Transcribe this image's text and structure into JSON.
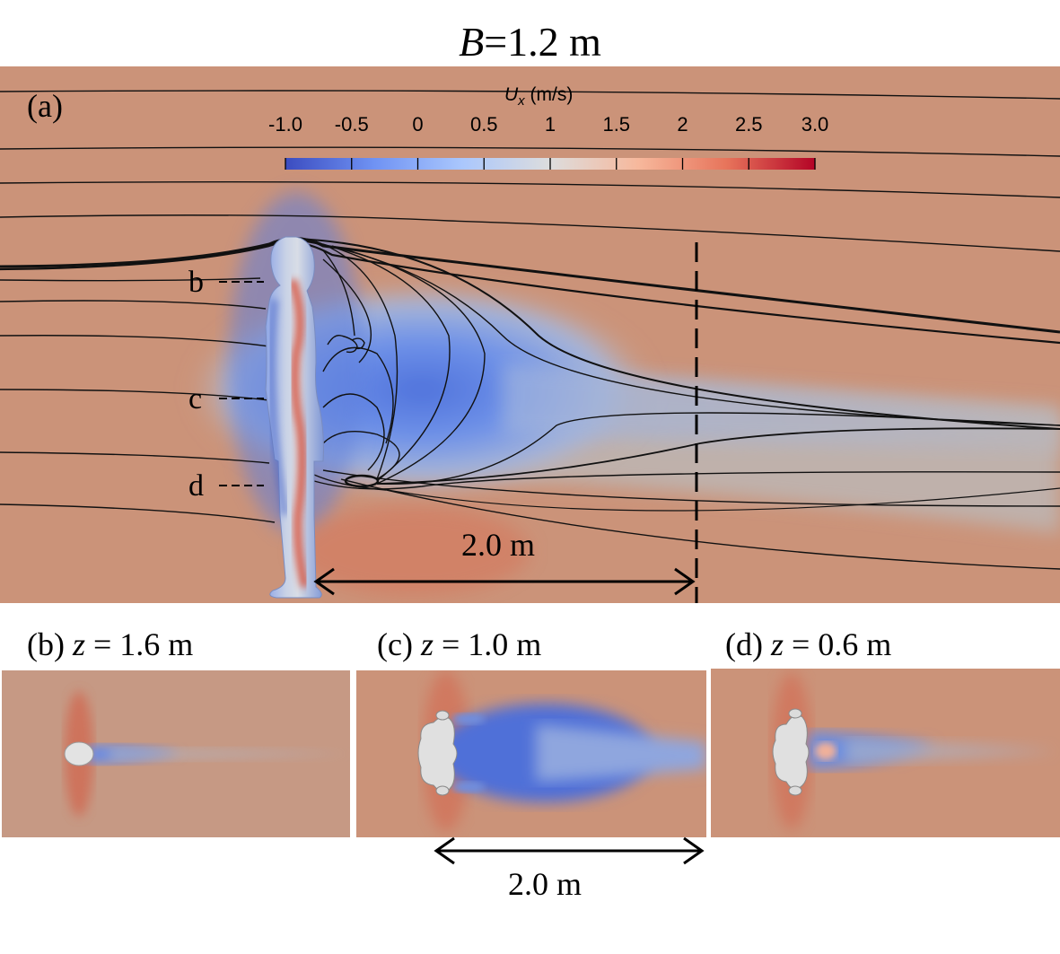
{
  "title": {
    "symbol": "B",
    "rest": "=1.2 m"
  },
  "panel_a": {
    "label": "(a)",
    "colorbar": {
      "title_symbol": "U",
      "title_subscript": "x",
      "title_units": " (m/s)",
      "ticks": [
        "-1.0",
        "-0.5",
        "0",
        "0.5",
        "1",
        "1.5",
        "2",
        "2.5",
        "3.0"
      ],
      "colors": [
        "#3b4cc0",
        "#6f92f3",
        "#aac7fd",
        "#dddddd",
        "#f7b89c",
        "#e7745b",
        "#b40426"
      ]
    },
    "height_markers": [
      "b",
      "c",
      "d"
    ],
    "distance_label": "2.0 m"
  },
  "panel_b": {
    "prefix": "(b) ",
    "var": "z",
    "suffix": " = 1.6 m"
  },
  "panel_c": {
    "prefix": "(c) ",
    "var": "z",
    "suffix": " = 1.0 m",
    "distance_label": "2.0 m"
  },
  "panel_d": {
    "prefix": "(d) ",
    "var": "z",
    "suffix": " = 0.6 m"
  }
}
